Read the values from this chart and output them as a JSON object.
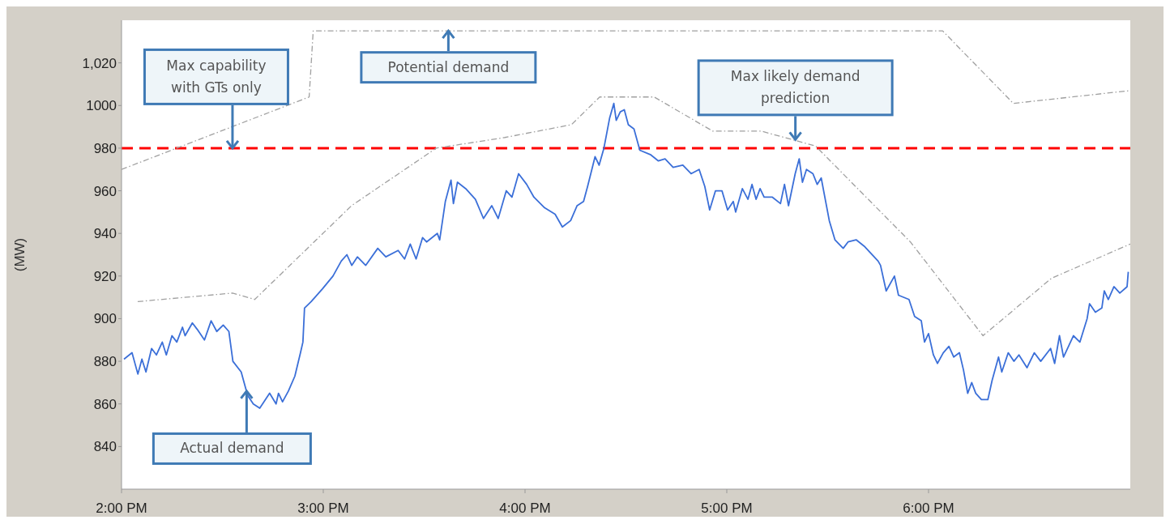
{
  "chart_data": {
    "type": "line",
    "ylabel": "(MW)",
    "xlim": [
      14,
      19
    ],
    "xticks": [
      {
        "value": 14,
        "label": "2:00 PM"
      },
      {
        "value": 15,
        "label": "3:00 PM"
      },
      {
        "value": 16,
        "label": "4:00 PM"
      },
      {
        "value": 17,
        "label": "5:00 PM"
      },
      {
        "value": 18,
        "label": "6:00 PM"
      }
    ],
    "ylim": [
      820,
      1040
    ],
    "yticks": [
      840,
      860,
      880,
      900,
      920,
      940,
      960,
      980,
      1000,
      {
        "value": 1020,
        "label": "1,020"
      }
    ],
    "grid": false,
    "marker": "none",
    "series": [
      {
        "color": "#3b6fd8",
        "line_style": "solid",
        "x": [
          14.012,
          14.052,
          14.081,
          14.101,
          14.121,
          14.149,
          14.173,
          14.202,
          14.222,
          14.25,
          14.274,
          14.302,
          14.315,
          14.351,
          14.375,
          14.411,
          14.444,
          14.472,
          14.504,
          14.532,
          14.552,
          14.593,
          14.625,
          14.653,
          14.685,
          14.734,
          14.766,
          14.778,
          14.798,
          14.827,
          14.859,
          14.887,
          14.899,
          14.907,
          14.94,
          14.996,
          15.048,
          15.089,
          15.117,
          15.141,
          15.169,
          15.21,
          15.27,
          15.31,
          15.371,
          15.403,
          15.431,
          15.46,
          15.492,
          15.512,
          15.565,
          15.577,
          15.605,
          15.633,
          15.645,
          15.665,
          15.706,
          15.754,
          15.794,
          15.835,
          15.867,
          15.907,
          15.935,
          15.968,
          16.008,
          16.044,
          16.097,
          16.149,
          16.185,
          16.226,
          16.258,
          16.29,
          16.31,
          16.347,
          16.367,
          16.391,
          16.419,
          16.44,
          16.452,
          16.472,
          16.492,
          16.512,
          16.54,
          16.569,
          16.621,
          16.661,
          16.694,
          16.734,
          16.782,
          16.823,
          16.863,
          16.891,
          16.915,
          16.944,
          16.976,
          17.004,
          17.032,
          17.044,
          17.077,
          17.105,
          17.125,
          17.145,
          17.165,
          17.185,
          17.226,
          17.266,
          17.286,
          17.306,
          17.339,
          17.359,
          17.375,
          17.395,
          17.427,
          17.448,
          17.468,
          17.508,
          17.536,
          17.577,
          17.601,
          17.641,
          17.681,
          17.75,
          17.762,
          17.79,
          17.831,
          17.851,
          17.903,
          17.931,
          17.964,
          17.98,
          18.0,
          18.024,
          18.044,
          18.073,
          18.101,
          18.125,
          18.153,
          18.173,
          18.194,
          18.214,
          18.234,
          18.262,
          18.294,
          18.315,
          18.347,
          18.363,
          18.395,
          18.423,
          18.448,
          18.488,
          18.524,
          18.556,
          18.605,
          18.625,
          18.649,
          18.669,
          18.718,
          18.75,
          18.786,
          18.798,
          18.827,
          18.859,
          18.871,
          18.891,
          18.919,
          18.948,
          18.984,
          18.99
        ],
        "values": [
          881,
          884,
          874,
          881,
          875,
          886,
          883,
          889,
          883,
          892,
          889,
          896,
          892,
          898,
          895,
          890,
          899,
          894,
          897,
          894,
          880,
          875,
          864,
          860,
          858,
          865,
          860,
          865,
          861,
          866,
          873,
          884,
          889,
          905,
          908,
          914,
          920,
          927,
          930,
          925,
          929,
          925,
          933,
          929,
          932,
          928,
          935,
          928,
          938,
          936,
          940,
          937,
          955,
          965,
          954,
          964,
          961,
          956,
          947,
          953,
          947,
          960,
          957,
          968,
          963,
          957,
          952,
          949,
          943,
          946,
          953,
          955,
          962,
          976,
          972,
          980,
          994,
          1001,
          993,
          997,
          998,
          991,
          989,
          979,
          977,
          974,
          975,
          971,
          972,
          968,
          970,
          962,
          951,
          960,
          960,
          951,
          955,
          950,
          961,
          956,
          963,
          956,
          961,
          957,
          957,
          954,
          963,
          953,
          968,
          975,
          964,
          970,
          968,
          963,
          966,
          946,
          937,
          933,
          936,
          937,
          934,
          927,
          925,
          913,
          920,
          911,
          909,
          901,
          899,
          889,
          893,
          883,
          879,
          884,
          887,
          882,
          884,
          876,
          865,
          870,
          865,
          862,
          862,
          871,
          882,
          875,
          884,
          880,
          883,
          877,
          884,
          880,
          886,
          879,
          892,
          882,
          892,
          889,
          900,
          907,
          903,
          905,
          913,
          909,
          915,
          912,
          915,
          922
        ]
      },
      {
        "color": "#a0a0a0",
        "line_style": "dashed",
        "x": [
          14,
          14.93,
          14.95,
          18.07,
          18.42,
          19
        ],
        "values": [
          970,
          1004,
          1035,
          1035,
          1001,
          1007
        ]
      },
      {
        "color": "#a0a0a0",
        "line_style": "dashed",
        "x": [
          14.08,
          14.55,
          14.66,
          15.14,
          15.56,
          15.9,
          16.23,
          16.37,
          16.64,
          16.93,
          17.17,
          17.44,
          17.91,
          18.27,
          18.61,
          19
        ],
        "values": [
          908,
          912,
          909,
          953,
          980,
          985,
          991,
          1004,
          1004,
          988,
          988,
          981,
          936,
          892,
          919,
          935
        ]
      }
    ],
    "ref_lines": [
      {
        "axis": "y",
        "value": 980,
        "color": "#ff0000",
        "line_style": "dashed"
      }
    ],
    "annotations": [
      {
        "text": "Max capability with GTs only",
        "x": 14.55,
        "y": 980
      },
      {
        "text": "Potential demand",
        "x": 15.62,
        "y": 1035
      },
      {
        "text": "Max likely demand prediction",
        "x": 17.34,
        "y": 984
      },
      {
        "text": "Actual demand",
        "x": 14.62,
        "y": 866
      }
    ]
  }
}
